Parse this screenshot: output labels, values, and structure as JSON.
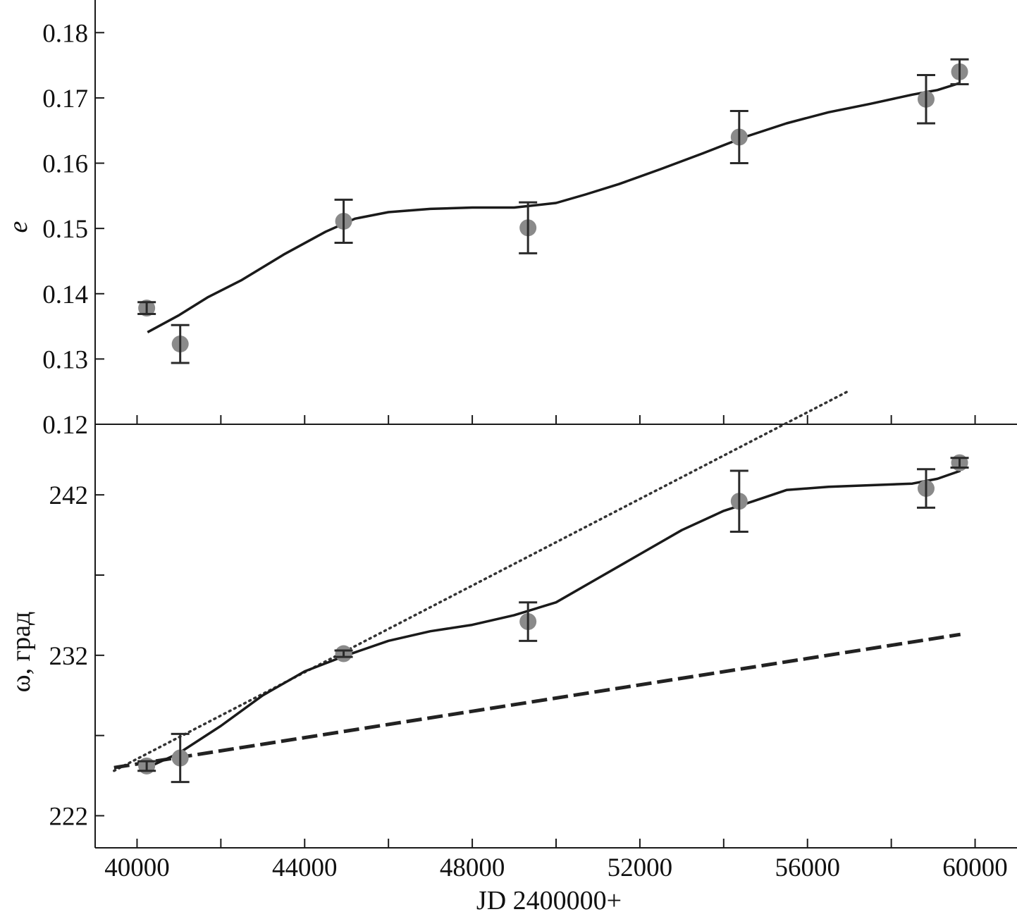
{
  "chart_data": [
    {
      "type": "scatter",
      "panel": "top",
      "ylabel": "e",
      "xlabel": "",
      "xlim": [
        39000,
        61000
      ],
      "ylim": [
        0.12,
        0.185
      ],
      "yticks": [
        0.12,
        0.13,
        0.14,
        0.15,
        0.16,
        0.17,
        0.18
      ],
      "ytick_labels": [
        "0.12",
        "0.13",
        "0.14",
        "0.15",
        "0.16",
        "0.17",
        "0.18"
      ],
      "grid": false,
      "points": [
        {
          "x": 40230,
          "y": 0.1378,
          "err": 0.0009
        },
        {
          "x": 41030,
          "y": 0.1323,
          "err": 0.0029
        },
        {
          "x": 44930,
          "y": 0.1511,
          "err": 0.0033
        },
        {
          "x": 49330,
          "y": 0.1501,
          "err": 0.0039
        },
        {
          "x": 54370,
          "y": 0.164,
          "err": 0.004
        },
        {
          "x": 58830,
          "y": 0.1698,
          "err": 0.0037
        },
        {
          "x": 59630,
          "y": 0.174,
          "err": 0.0019
        }
      ],
      "model_line": {
        "x": [
          40250,
          41000,
          41700,
          42500,
          43500,
          44500,
          45200,
          46000,
          47000,
          48000,
          49000,
          50000,
          50700,
          51500,
          52500,
          53500,
          54500,
          55500,
          56500,
          57500,
          58500,
          59100,
          59650
        ],
        "y": [
          0.1341,
          0.1367,
          0.1395,
          0.1421,
          0.146,
          0.1495,
          0.1515,
          0.1525,
          0.153,
          0.1532,
          0.1532,
          0.1539,
          0.1552,
          0.1568,
          0.1591,
          0.1615,
          0.164,
          0.1661,
          0.1678,
          0.1691,
          0.1705,
          0.1712,
          0.1723
        ]
      }
    },
    {
      "type": "scatter",
      "panel": "bottom",
      "ylabel": "ω, град",
      "xlabel": "JD 2400000+",
      "xlim": [
        39000,
        61000
      ],
      "ylim": [
        220.0,
        246.4
      ],
      "xticks": [
        40000,
        42000,
        44000,
        46000,
        48000,
        50000,
        52000,
        54000,
        56000,
        58000,
        60000
      ],
      "xtick_labels": [
        "40000",
        "44000",
        "48000",
        "52000",
        "56000",
        "60000"
      ],
      "yticks": [
        222,
        227,
        232,
        237,
        242
      ],
      "ytick_labels": [
        "222",
        "232",
        "242"
      ],
      "grid": false,
      "points": [
        {
          "x": 40230,
          "y": 225.1,
          "err": 0.3
        },
        {
          "x": 41030,
          "y": 225.6,
          "err": 1.5
        },
        {
          "x": 44930,
          "y": 232.1,
          "err": 0.2
        },
        {
          "x": 49330,
          "y": 234.1,
          "err": 1.2
        },
        {
          "x": 54370,
          "y": 241.6,
          "err": 1.9
        },
        {
          "x": 58830,
          "y": 242.4,
          "err": 1.2
        },
        {
          "x": 59630,
          "y": 244.0,
          "err": 0.3
        }
      ],
      "model_line": {
        "x": [
          40250,
          41000,
          42000,
          43000,
          44000,
          45000,
          46000,
          47000,
          48000,
          49000,
          50000,
          51000,
          52000,
          53000,
          54000,
          54700,
          55500,
          56500,
          57500,
          58500,
          59100,
          59650
        ],
        "y": [
          225.0,
          225.9,
          227.6,
          229.5,
          231.0,
          232.0,
          232.9,
          233.5,
          233.9,
          234.5,
          235.3,
          236.8,
          238.3,
          239.8,
          241.0,
          241.6,
          242.3,
          242.5,
          242.6,
          242.7,
          243.0,
          243.5
        ]
      },
      "dotted_line": {
        "x": [
          39450,
          57000
        ],
        "y": [
          224.8,
          248.5
        ]
      },
      "dashed_line": {
        "x": [
          39450,
          59650
        ],
        "y": [
          225.0,
          233.3
        ]
      }
    }
  ],
  "colors": {
    "line": "#1a1a1a",
    "marker": "#8a8a8a",
    "axis": "#1a1a1a",
    "errorbar": "#2a2a2a"
  }
}
